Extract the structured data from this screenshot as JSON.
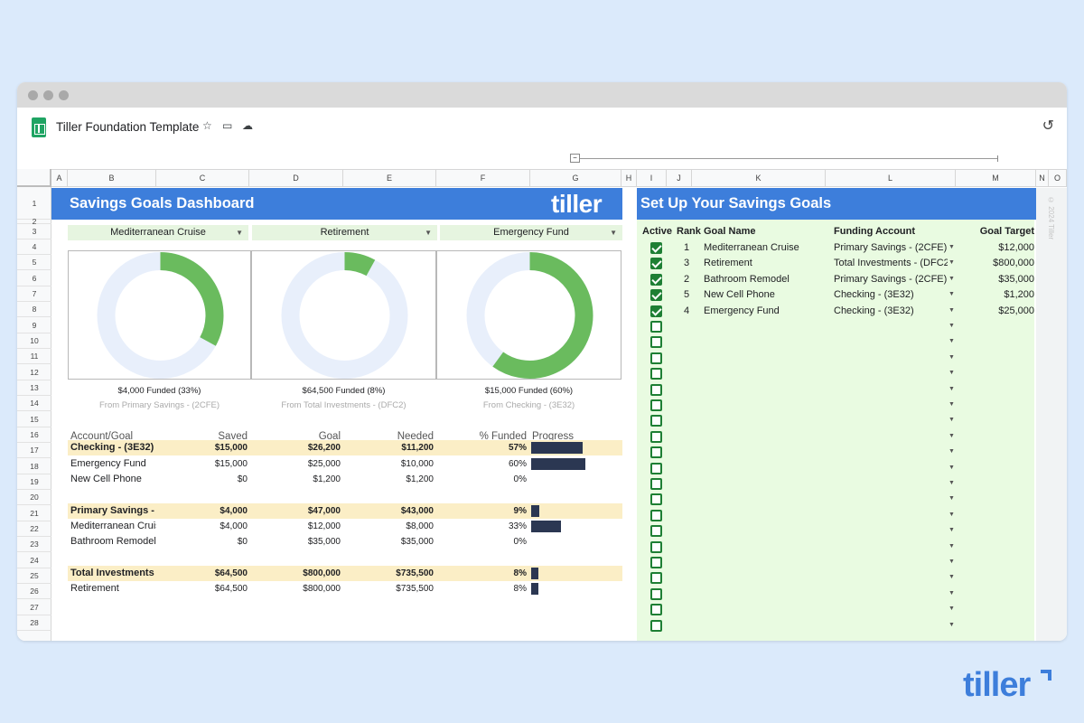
{
  "app": {
    "doc_title": "Tiller Foundation Template",
    "star_icon": "star-icon",
    "folder_icon": "folder-icon",
    "cloud_icon": "cloud-icon",
    "history_icon": "history-icon"
  },
  "columns": [
    "A",
    "B",
    "C",
    "D",
    "E",
    "F",
    "G",
    "H",
    "I",
    "J",
    "K",
    "L",
    "M",
    "N",
    "O"
  ],
  "rows": [
    "1",
    "2",
    "3",
    "4",
    "5",
    "6",
    "7",
    "8",
    "9",
    "10",
    "11",
    "12",
    "13",
    "14",
    "15",
    "16",
    "17",
    "18",
    "19",
    "20",
    "21",
    "22",
    "23",
    "24",
    "25",
    "26",
    "27",
    "28"
  ],
  "dashboard": {
    "title": "Savings Goals Dashboard",
    "logo": "tiller",
    "selectors": [
      "Mediterranean Cruise",
      "Retirement",
      "Emergency Fund"
    ],
    "donuts": [
      {
        "caption": "$4,000 Funded (33%)",
        "source": "From Primary Savings -  (2CFE)",
        "fraction": 0.33
      },
      {
        "caption": "$64,500 Funded (8%)",
        "source": "From Total Investments -  (DFC2)",
        "fraction": 0.08
      },
      {
        "caption": "$15,000 Funded (60%)",
        "source": "From Checking -  (3E32)",
        "fraction": 0.6
      }
    ],
    "table_headers": [
      "Account/Goal",
      "Saved",
      "Goal",
      "Needed",
      "% Funded",
      "Progress"
    ],
    "table_rows": [
      {
        "name": "Checking -  (3E32)",
        "saved": "$15,000",
        "goal": "$26,200",
        "needed": "$11,200",
        "pct": "57%",
        "progress": 0.57,
        "hl": true
      },
      {
        "name": "Emergency Fund",
        "saved": "$15,000",
        "goal": "$25,000",
        "needed": "$10,000",
        "pct": "60%",
        "progress": 0.6,
        "hl": false
      },
      {
        "name": "New Cell Phone",
        "saved": "$0",
        "goal": "$1,200",
        "needed": "$1,200",
        "pct": "0%",
        "progress": 0,
        "hl": false
      },
      null,
      {
        "name": "Primary Savings -  (",
        "saved": "$4,000",
        "goal": "$47,000",
        "needed": "$43,000",
        "pct": "9%",
        "progress": 0.09,
        "hl": true
      },
      {
        "name": "Mediterranean Cruis",
        "saved": "$4,000",
        "goal": "$12,000",
        "needed": "$8,000",
        "pct": "33%",
        "progress": 0.33,
        "hl": false
      },
      {
        "name": "Bathroom Remodel",
        "saved": "$0",
        "goal": "$35,000",
        "needed": "$35,000",
        "pct": "0%",
        "progress": 0,
        "hl": false
      },
      null,
      {
        "name": "Total Investments -",
        "saved": "$64,500",
        "goal": "$800,000",
        "needed": "$735,500",
        "pct": "8%",
        "progress": 0.08,
        "hl": true
      },
      {
        "name": "Retirement",
        "saved": "$64,500",
        "goal": "$800,000",
        "needed": "$735,500",
        "pct": "8%",
        "progress": 0.08,
        "hl": false
      }
    ]
  },
  "setup": {
    "title": "Set Up Your Savings Goals",
    "headers": [
      "Active",
      "Rank",
      "Goal Name",
      "Funding Account",
      "Goal Target"
    ],
    "goals": [
      {
        "rank": "1",
        "name": "Mediterranean Cruise",
        "account": "Primary Savings -  (2CFE)",
        "target": "$12,000"
      },
      {
        "rank": "3",
        "name": "Retirement",
        "account": "Total Investments -  (DFC2",
        "target": "$800,000"
      },
      {
        "rank": "2",
        "name": "Bathroom Remodel",
        "account": "Primary Savings -  (2CFE)",
        "target": "$35,000"
      },
      {
        "rank": "5",
        "name": "New Cell Phone",
        "account": "Checking -  (3E32)",
        "target": "$1,200"
      },
      {
        "rank": "4",
        "name": "Emergency Fund",
        "account": "Checking -  (3E32)",
        "target": "$25,000"
      }
    ],
    "empty_rows": 20,
    "copyright": "© 2024 Tiller"
  },
  "brand": "tiller",
  "colors": {
    "banner": "#3d7edb",
    "donut_fill": "#6abb5e",
    "donut_track": "#e8effb",
    "bar": "#2b3752",
    "highlight": "#fbeec6",
    "green_bg": "#e9fbe1"
  }
}
